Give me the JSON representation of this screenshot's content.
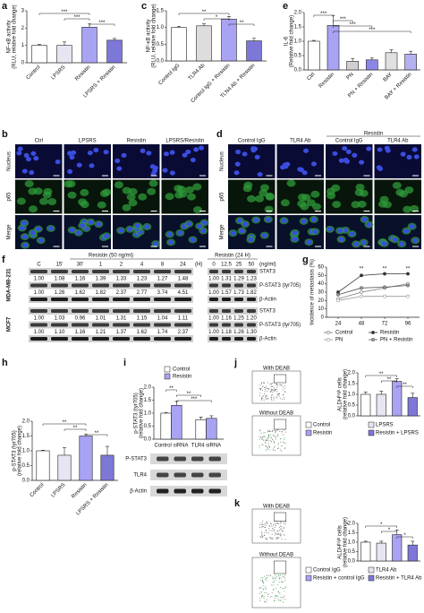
{
  "chart_data": [
    {
      "label": "a",
      "type": "bar",
      "ylabel": [
        "NF-κB activity",
        "(RLU, relative fold change)"
      ],
      "categories": [
        "Control",
        "LPSRS",
        "Resistin",
        "LPSRS + Resistin"
      ],
      "values": [
        1.0,
        1.0,
        2.05,
        1.3
      ],
      "errors": [
        0.05,
        0.2,
        0.2,
        0.1
      ],
      "colors": [
        "#ffffff",
        "#e6e6f2",
        "#a9a3f3",
        "#7d77d8"
      ],
      "ylim": [
        0,
        3
      ],
      "yticks": [
        0,
        1,
        2,
        3
      ],
      "annotations": [
        "***",
        "***",
        "***"
      ]
    },
    {
      "label": "c",
      "type": "bar",
      "ylabel": [
        "NF-κB activity",
        "(RLU, relative fold change)"
      ],
      "categories": [
        "Control IgG",
        "TLR4 Ab",
        "Control IgG + Resistin",
        "TLN4 Ab + Resistin"
      ],
      "values": [
        1.0,
        1.05,
        1.25,
        0.6
      ],
      "errors": [
        0.03,
        0.06,
        0.08,
        0.08
      ],
      "colors": [
        "#ffffff",
        "#dddddd",
        "#a9a3f3",
        "#7d77d8"
      ],
      "ylim": [
        0,
        1.5
      ],
      "yticks": [
        {
          "value": 0,
          "label": "0.0"
        },
        0.5,
        {
          "value": 1,
          "label": "1.0"
        },
        1.5
      ],
      "annotations": [
        "**",
        "*",
        "**"
      ]
    },
    {
      "label": "e",
      "type": "bar",
      "ylabel": [
        "IL-6",
        "(Relative fold change)"
      ],
      "categories": [
        "Ctrl",
        "Resistin",
        "PN",
        "PN + Resistin",
        "BAY",
        "BAY + Resistin"
      ],
      "values": [
        1.0,
        1.55,
        0.3,
        0.35,
        0.6,
        0.55
      ],
      "errors": [
        0.03,
        0.35,
        0.1,
        0.08,
        0.1,
        0.1
      ],
      "colors": [
        "#ffffff",
        "#a9a3f3",
        "#cfcfcf",
        "#8c87e6",
        "#e0e0e0",
        "#b5b1ef"
      ],
      "ylim": [
        0,
        2
      ],
      "yticks": [
        {
          "value": 0,
          "label": "0.0"
        },
        0.5,
        {
          "value": 1,
          "label": "1.0"
        },
        1.5,
        {
          "value": 2,
          "label": "2.0"
        }
      ],
      "annotations": [
        "***",
        "***",
        "***",
        "***"
      ]
    },
    {
      "label": "g",
      "type": "line",
      "ylabel": "Incidence of metastasis (%)",
      "x": [
        24,
        48,
        72,
        96
      ],
      "xlim": [
        12,
        108
      ],
      "xticks": [
        24,
        48,
        72,
        96
      ],
      "ylim": [
        0,
        60
      ],
      "yticks": [
        0,
        10,
        20,
        30,
        40,
        50,
        60
      ],
      "series": [
        {
          "name": "Control",
          "color": "#777777",
          "values": [
            22,
            30,
            35,
            40
          ]
        },
        {
          "name": "Resistin",
          "color": "#333333",
          "values": [
            30,
            50,
            52,
            52
          ]
        },
        {
          "name": "PN",
          "color": "#999999",
          "values": [
            20,
            25,
            25,
            25
          ]
        },
        {
          "name": "PN + Resistin",
          "color": "#555555",
          "values": [
            27,
            35,
            36,
            38
          ]
        }
      ],
      "annotations": [
        "**",
        "**",
        "**"
      ]
    },
    {
      "label": "h",
      "type": "bar",
      "ylabel": [
        "p-STAT3 (tyr705)",
        "(relative fold change)"
      ],
      "categories": [
        "Control",
        "LPSRS",
        "Resistin",
        "LPSRS + Resistin"
      ],
      "values": [
        1.0,
        0.85,
        1.5,
        0.85
      ],
      "errors": [
        0.02,
        0.25,
        0.06,
        0.3
      ],
      "colors": [
        "#ffffff",
        "#e6e6f2",
        "#a9a3f3",
        "#7d77d8"
      ],
      "ylim": [
        0,
        2
      ],
      "yticks": [
        {
          "value": 0,
          "label": "0.0"
        },
        0.5,
        {
          "value": 1,
          "label": "1.0"
        },
        1.5,
        {
          "value": 2,
          "label": "2.0"
        }
      ],
      "annotations": [
        "**",
        "**",
        "**"
      ]
    },
    {
      "label": "i",
      "type": "bar",
      "ylabel": [
        "p-STAT3 (tyr705)",
        "(relative fold change)"
      ],
      "categories": [
        "Control siRNA",
        "TLR4 siRNA"
      ],
      "series": [
        {
          "name": "Control",
          "color": "#ffffff",
          "values": [
            1.0,
            0.75
          ],
          "errors": [
            0.03,
            0.1
          ]
        },
        {
          "name": "Resistin",
          "color": "#a9a3f3",
          "values": [
            1.3,
            0.8
          ],
          "errors": [
            0.15,
            0.1
          ]
        }
      ],
      "ylim": [
        0,
        2
      ],
      "yticks": [
        {
          "value": 0,
          "label": "0.0"
        },
        0.5,
        {
          "value": 1,
          "label": "1.0"
        },
        1.5,
        {
          "value": 2,
          "label": "2.0"
        }
      ],
      "annotations": [
        "**",
        "**",
        "***"
      ],
      "blots": [
        "P-STAT3",
        "TLR4",
        "β-Actin"
      ]
    },
    {
      "label": "j",
      "type": "bar",
      "ylabel": [
        "ALDHʰⁱᵍʰ cells",
        "(relative fold change)"
      ],
      "categories": [
        "Control",
        "LPSRS",
        "Resistin",
        "Resistin + LPSRS"
      ],
      "values": [
        1.0,
        1.0,
        1.6,
        0.85
      ],
      "errors": [
        0.1,
        0.15,
        0.12,
        0.2
      ],
      "colors": [
        "#ffffff",
        "#e6e6f2",
        "#a9a3f3",
        "#7d77d8"
      ],
      "ylim": [
        0,
        2
      ],
      "yticks": [
        {
          "value": 0,
          "label": "0.0"
        },
        0.5,
        {
          "value": 1,
          "label": "1.0"
        },
        1.5,
        {
          "value": 2,
          "label": "2.0"
        }
      ],
      "annotations": [
        "**",
        "**",
        "**"
      ],
      "flow_plots": [
        "With DEAB",
        "Without DEAB"
      ]
    },
    {
      "label": "k",
      "type": "bar",
      "ylabel": [
        "ALDHʰⁱᵍʰ cells",
        "(relative fold change)"
      ],
      "categories": [
        "Control IgG",
        "TLR4 Ab",
        "Resistin + control IgG",
        "Resistin + TLR4 Ab"
      ],
      "values": [
        1.0,
        0.95,
        1.4,
        0.85
      ],
      "errors": [
        0.05,
        0.1,
        0.25,
        0.2
      ],
      "colors": [
        "#ffffff",
        "#e6e6f2",
        "#a9a3f3",
        "#7d77d8"
      ],
      "ylim": [
        0,
        2
      ],
      "yticks": [
        {
          "value": 0,
          "label": "0.0"
        },
        0.5,
        {
          "value": 1,
          "label": "1.0"
        },
        1.5,
        {
          "value": 2,
          "label": "2.0"
        }
      ],
      "annotations": [
        "*",
        "*",
        "*"
      ],
      "flow_plots": [
        "With DEAB",
        "Without DEAB"
      ]
    }
  ],
  "micrographs": [
    {
      "label": "b",
      "columns": [
        "Ctrl",
        "LPSRS",
        "Resistin",
        "LPSRS/Resistin"
      ],
      "rows": [
        "Nucleus",
        "p65",
        "Merge"
      ]
    },
    {
      "label": "d",
      "group": "Resistin",
      "columns": [
        "Control IgG",
        "TLR4 Ab",
        "Control IgG",
        "TLR4 Ab"
      ],
      "rows": [
        "Nucleus",
        "p65",
        "Merge"
      ]
    }
  ],
  "blots": {
    "label": "f",
    "left_header": "Resistin (50 ng/ml)",
    "right_header": "Resistin (24 H)",
    "left_lanes": [
      "C",
      "15'",
      "30'",
      "1",
      "2",
      "4",
      "8",
      "24"
    ],
    "left_unit": "(H)",
    "right_lanes": [
      "0",
      "12.5",
      "25",
      "50"
    ],
    "right_unit": "(ng/ml)",
    "cell_lines": [
      {
        "name": "MDA-MB-231",
        "rows": [
          {
            "protein": "STAT3",
            "left_q": [
              "1.00",
              "1.08",
              "1.16",
              "1.39",
              "1.33",
              "1.23",
              "1.27",
              "1.48"
            ],
            "right_q": [
              "1.00",
              "1.31",
              "1.29",
              "1.23"
            ]
          },
          {
            "protein": "P-STAT3 (tyr705)",
            "left_q": [
              "1.00",
              "1.26",
              "1.62",
              "1.82",
              "2.37",
              "2.77",
              "3.74",
              "4.51"
            ],
            "right_q": [
              "1.00",
              "1.57",
              "1.73",
              "1.82"
            ]
          },
          {
            "protein": "β-Actin"
          }
        ]
      },
      {
        "name": "MCF7",
        "rows": [
          {
            "protein": "STAT3",
            "left_q": [
              "1.00",
              "1.03",
              "0.96",
              "1.01",
              "1.31",
              "1.15",
              "1.04",
              "1.11"
            ],
            "right_q": [
              "1.00",
              "1.16",
              "1.25",
              "1.20"
            ]
          },
          {
            "protein": "P-STAT3 (tyr705)",
            "left_q": [
              "1.00",
              "1.10",
              "1.16",
              "1.21",
              "1.37",
              "1.62",
              "1.74",
              "2.37"
            ],
            "right_q": [
              "1.00",
              "1.18",
              "1.26",
              "1.30"
            ]
          },
          {
            "protein": "β-Actin"
          }
        ]
      }
    ]
  }
}
